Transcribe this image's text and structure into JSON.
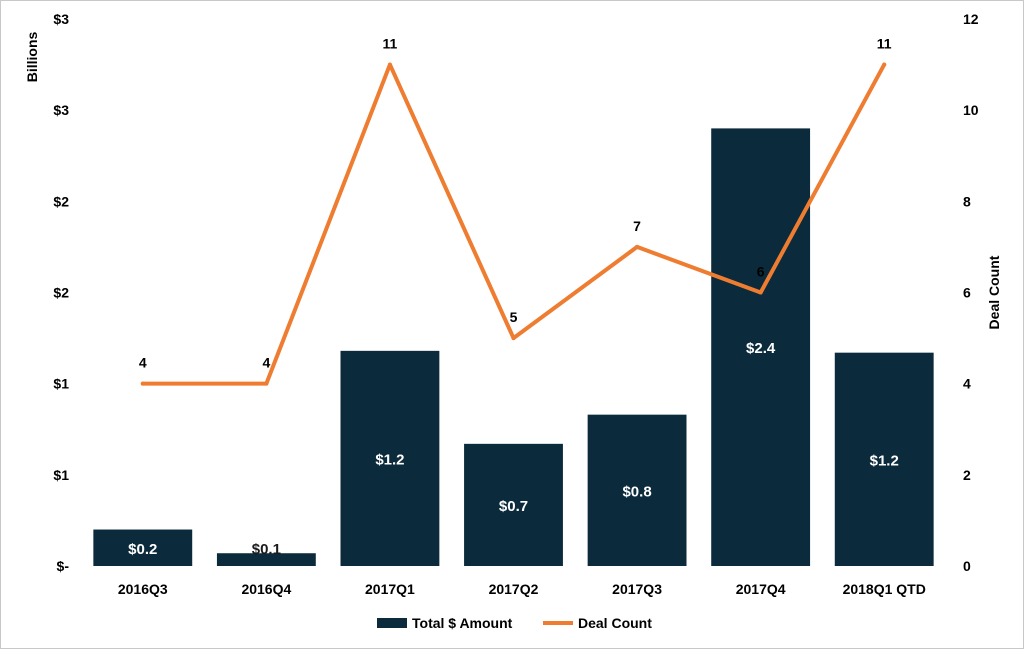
{
  "chart_data": {
    "type": "bar",
    "categories": [
      "2016Q3",
      "2016Q4",
      "2017Q1",
      "2017Q2",
      "2017Q3",
      "2017Q4",
      "2018Q1 QTD"
    ],
    "series": [
      {
        "name": "Total $ Amount",
        "type": "bar",
        "axis": "left",
        "values": [
          0.2,
          0.07,
          1.18,
          0.67,
          0.83,
          2.4,
          1.17
        ],
        "labels": [
          "$0.2",
          "$0.1",
          "$1.2",
          "$0.7",
          "$0.8",
          "$2.4",
          "$1.2"
        ],
        "color": "#0b2a3b"
      },
      {
        "name": "Deal Count",
        "type": "line",
        "axis": "right",
        "values": [
          4,
          4,
          11,
          5,
          7,
          6,
          11
        ],
        "labels": [
          "4",
          "4",
          "11",
          "5",
          "7",
          "6",
          "11"
        ],
        "color": "#ee7d31"
      }
    ],
    "y_left": {
      "label": "Billions",
      "ylim": [
        0,
        3
      ],
      "ticks": [
        0,
        0.5,
        1,
        1.5,
        2,
        2.5,
        3
      ],
      "tick_labels": [
        "$-",
        "$1",
        "$1",
        "$2",
        "$2",
        "$3",
        "$3"
      ]
    },
    "y_right": {
      "label": "Deal Count",
      "ylim": [
        0,
        12
      ],
      "ticks": [
        0,
        2,
        4,
        6,
        8,
        10,
        12
      ],
      "tick_labels": [
        "0",
        "2",
        "4",
        "6",
        "8",
        "10",
        "12"
      ]
    },
    "grid": false,
    "legend": {
      "position": "bottom",
      "entries": [
        "Total $ Amount",
        "Deal Count"
      ]
    }
  }
}
